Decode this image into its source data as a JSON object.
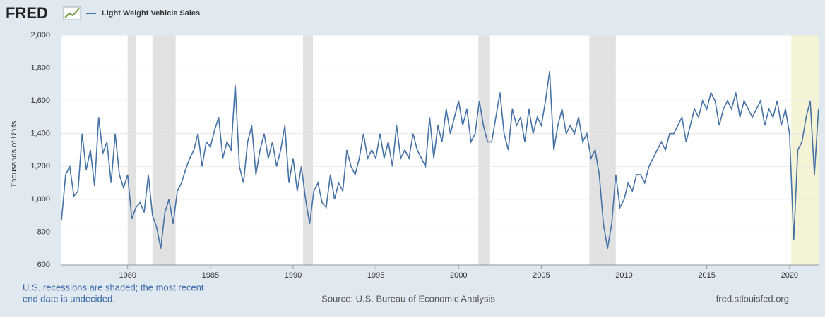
{
  "logo": "FRED",
  "note": [
    "U.S. recessions are shaded; the most recent",
    "end date is undecided."
  ],
  "source": "Source: U.S. Bureau of Economic Analysis",
  "url": "fred.stlouisfed.org",
  "chart_data": {
    "type": "line",
    "ylabel": "Thousands of Units",
    "xlim": [
      1976,
      2021.8
    ],
    "ylim": [
      600,
      2000
    ],
    "xticks": [
      1980,
      1985,
      1990,
      1995,
      2000,
      2005,
      2010,
      2015,
      2020
    ],
    "yticks": [
      {
        "value": 600,
        "label": "600"
      },
      {
        "value": 800,
        "label": "800"
      },
      {
        "value": 1000,
        "label": "1,000"
      },
      {
        "value": 1200,
        "label": "1,200"
      },
      {
        "value": 1400,
        "label": "1,400"
      },
      {
        "value": 1600,
        "label": "1,600"
      },
      {
        "value": 1800,
        "label": "1,800"
      },
      {
        "value": 2000,
        "label": "2,000"
      }
    ],
    "grid": true,
    "recession_color": "#e1e1e1",
    "current_recession_color": "#f5f3d6",
    "recessions": [
      [
        1980.0,
        1980.5
      ],
      [
        1981.5,
        1982.9
      ],
      [
        1990.6,
        1991.2
      ],
      [
        2001.2,
        2001.9
      ],
      [
        2007.9,
        2009.5
      ]
    ],
    "current_recession_start": 2020.1,
    "x": [
      1976,
      1976.25,
      1976.5,
      1976.75,
      1977,
      1977.25,
      1977.5,
      1977.75,
      1978,
      1978.25,
      1978.5,
      1978.75,
      1979,
      1979.25,
      1979.5,
      1979.75,
      1980,
      1980.25,
      1980.5,
      1980.75,
      1981,
      1981.25,
      1981.5,
      1981.75,
      1982,
      1982.25,
      1982.5,
      1982.75,
      1983,
      1983.25,
      1983.5,
      1983.75,
      1984,
      1984.25,
      1984.5,
      1984.75,
      1985,
      1985.25,
      1985.5,
      1985.75,
      1986,
      1986.25,
      1986.5,
      1986.75,
      1987,
      1987.25,
      1987.5,
      1987.75,
      1988,
      1988.25,
      1988.5,
      1988.75,
      1989,
      1989.25,
      1989.5,
      1989.75,
      1990,
      1990.25,
      1990.5,
      1990.75,
      1991,
      1991.25,
      1991.5,
      1991.75,
      1992,
      1992.25,
      1992.5,
      1992.75,
      1993,
      1993.25,
      1993.5,
      1993.75,
      1994,
      1994.25,
      1994.5,
      1994.75,
      1995,
      1995.25,
      1995.5,
      1995.75,
      1996,
      1996.25,
      1996.5,
      1996.75,
      1997,
      1997.25,
      1997.5,
      1997.75,
      1998,
      1998.25,
      1998.5,
      1998.75,
      1999,
      1999.25,
      1999.5,
      1999.75,
      2000,
      2000.25,
      2000.5,
      2000.75,
      2001,
      2001.25,
      2001.5,
      2001.75,
      2002,
      2002.25,
      2002.5,
      2002.75,
      2003,
      2003.25,
      2003.5,
      2003.75,
      2004,
      2004.25,
      2004.5,
      2004.75,
      2005,
      2005.25,
      2005.5,
      2005.75,
      2006,
      2006.25,
      2006.5,
      2006.75,
      2007,
      2007.25,
      2007.5,
      2007.75,
      2008,
      2008.25,
      2008.5,
      2008.75,
      2009,
      2009.25,
      2009.5,
      2009.75,
      2010,
      2010.25,
      2010.5,
      2010.75,
      2011,
      2011.25,
      2011.5,
      2011.75,
      2012,
      2012.25,
      2012.5,
      2012.75,
      2013,
      2013.25,
      2013.5,
      2013.75,
      2014,
      2014.25,
      2014.5,
      2014.75,
      2015,
      2015.25,
      2015.5,
      2015.75,
      2016,
      2016.25,
      2016.5,
      2016.75,
      2017,
      2017.25,
      2017.5,
      2017.75,
      2018,
      2018.25,
      2018.5,
      2018.75,
      2019,
      2019.25,
      2019.5,
      2019.75,
      2020,
      2020.25,
      2020.5,
      2020.75,
      2021,
      2021.25,
      2021.5,
      2021.75
    ],
    "series": [
      {
        "name": "Light Weight Vehicle Sales",
        "color": "#4572a7",
        "values": [
          870,
          1150,
          1200,
          1020,
          1050,
          1400,
          1180,
          1300,
          1080,
          1500,
          1280,
          1350,
          1100,
          1400,
          1150,
          1070,
          1150,
          880,
          950,
          980,
          920,
          1150,
          900,
          830,
          700,
          920,
          1000,
          850,
          1050,
          1100,
          1180,
          1250,
          1300,
          1400,
          1200,
          1350,
          1320,
          1420,
          1500,
          1250,
          1350,
          1300,
          1700,
          1200,
          1100,
          1350,
          1450,
          1150,
          1300,
          1400,
          1250,
          1350,
          1200,
          1300,
          1450,
          1100,
          1250,
          1050,
          1200,
          1000,
          850,
          1050,
          1100,
          980,
          950,
          1150,
          1000,
          1100,
          1050,
          1300,
          1200,
          1150,
          1250,
          1400,
          1250,
          1300,
          1250,
          1400,
          1250,
          1350,
          1200,
          1450,
          1250,
          1300,
          1250,
          1400,
          1300,
          1250,
          1200,
          1500,
          1250,
          1450,
          1350,
          1550,
          1400,
          1500,
          1600,
          1450,
          1550,
          1350,
          1400,
          1600,
          1450,
          1350,
          1350,
          1500,
          1650,
          1400,
          1300,
          1550,
          1450,
          1500,
          1350,
          1550,
          1400,
          1500,
          1450,
          1600,
          1780,
          1300,
          1450,
          1550,
          1400,
          1450,
          1400,
          1500,
          1350,
          1400,
          1250,
          1300,
          1150,
          850,
          700,
          850,
          1150,
          950,
          1000,
          1100,
          1050,
          1150,
          1150,
          1100,
          1200,
          1250,
          1300,
          1350,
          1300,
          1400,
          1400,
          1450,
          1500,
          1350,
          1450,
          1550,
          1500,
          1600,
          1550,
          1650,
          1600,
          1450,
          1550,
          1600,
          1550,
          1650,
          1500,
          1600,
          1550,
          1500,
          1550,
          1600,
          1450,
          1550,
          1500,
          1600,
          1450,
          1550,
          1400,
          750,
          1300,
          1350,
          1500,
          1600,
          1150,
          1550
        ]
      }
    ]
  }
}
